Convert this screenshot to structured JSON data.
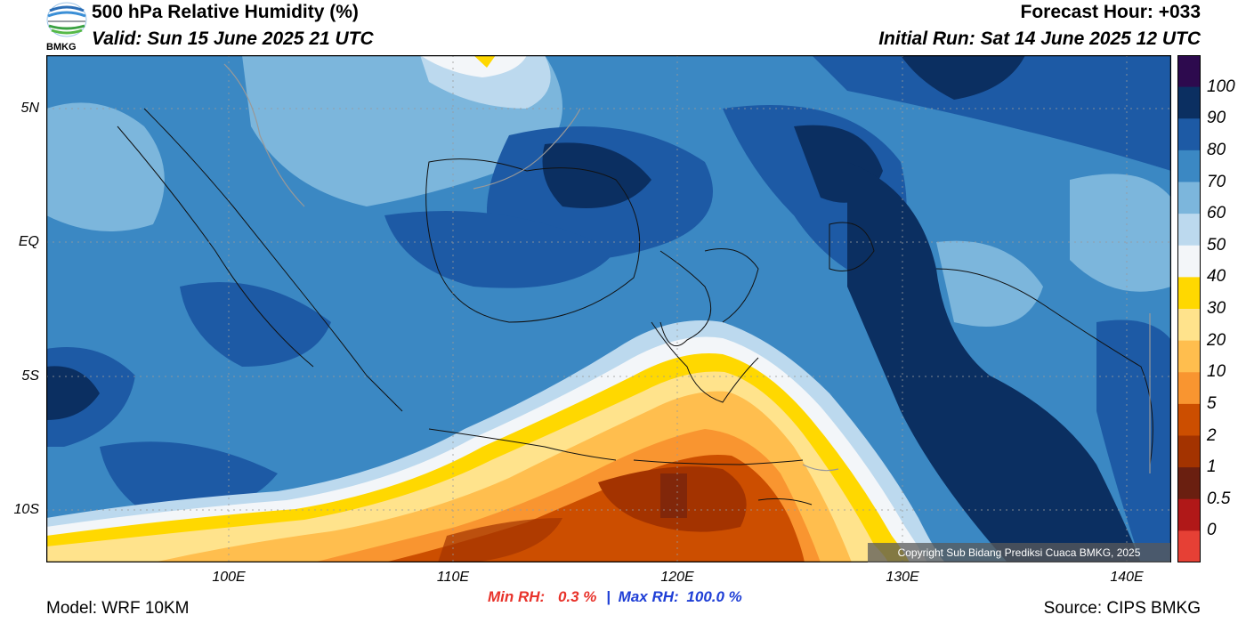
{
  "header": {
    "title": "500 hPa Relative Humidity (%)",
    "valid": "Valid: Sun 15 June 2025 21 UTC",
    "forecast_hour": "Forecast Hour: +033",
    "initial_run": "Initial Run: Sat 14 June 2025 12 UTC",
    "logo_text": "BMKG"
  },
  "axes": {
    "lat_labels": [
      "5N",
      "EQ",
      "5S",
      "10S"
    ],
    "lon_labels": [
      "100E",
      "110E",
      "120E",
      "130E",
      "140E"
    ]
  },
  "colorbar": {
    "levels": [
      "100",
      "90",
      "80",
      "70",
      "60",
      "50",
      "40",
      "30",
      "20",
      "10",
      "5",
      "2",
      "1",
      "0.5",
      "0"
    ],
    "colors": [
      "#2d0a4e",
      "#0b2f61",
      "#1d5aa5",
      "#3b88c3",
      "#7cb6dc",
      "#bcd9ee",
      "#f3f6f9",
      "#ffd800",
      "#ffe38c",
      "#ffbe4e",
      "#f99530",
      "#cc4e00",
      "#a33300",
      "#6a1f10",
      "#b01818",
      "#e64035"
    ]
  },
  "stats": {
    "min_label": "Min RH:",
    "min_value": "0.3 %",
    "separator": "|",
    "max_label": "Max RH:",
    "max_value": "100.0 %"
  },
  "footer": {
    "model": "Model: WRF 10KM",
    "source": "Source: CIPS BMKG",
    "copyright": "Copyright Sub Bidang Prediksi Cuaca BMKG, 2025"
  }
}
